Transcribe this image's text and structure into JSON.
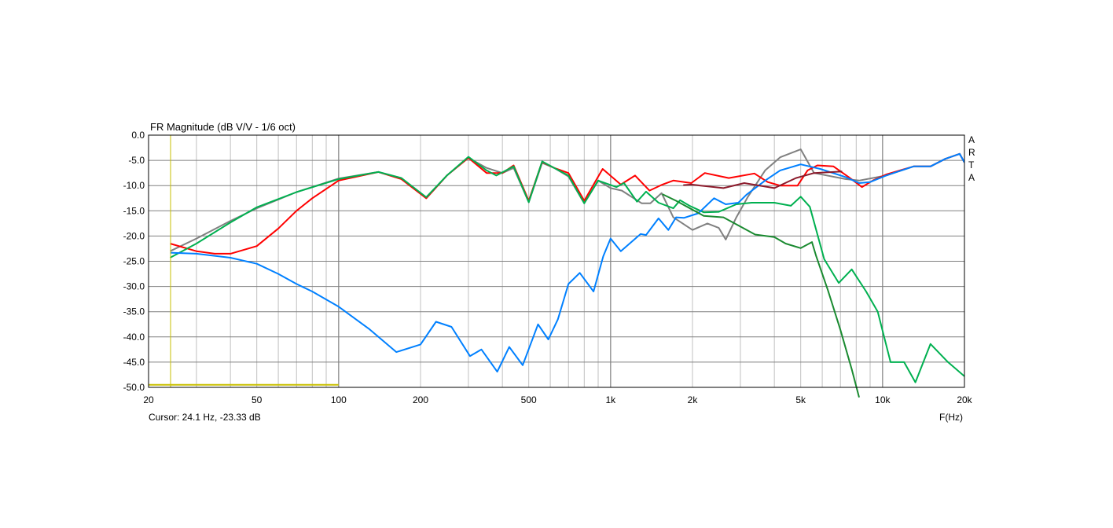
{
  "chart_data": {
    "type": "line",
    "title": "FR Magnitude (dB V/V - 1/6 oct)",
    "xlabel": "F(Hz)",
    "ylabel": "",
    "x_scale": "log",
    "xlim": [
      20,
      20000
    ],
    "ylim": [
      -50,
      0
    ],
    "grid": true,
    "x_ticks": [
      {
        "v": 20,
        "label": "20"
      },
      {
        "v": 50,
        "label": "50"
      },
      {
        "v": 100,
        "label": "100"
      },
      {
        "v": 200,
        "label": "200"
      },
      {
        "v": 500,
        "label": "500"
      },
      {
        "v": 1000,
        "label": "1k"
      },
      {
        "v": 2000,
        "label": "2k"
      },
      {
        "v": 5000,
        "label": "5k"
      },
      {
        "v": 10000,
        "label": "10k"
      },
      {
        "v": 20000,
        "label": "20k"
      }
    ],
    "y_ticks": [
      {
        "v": 0,
        "label": "0.0"
      },
      {
        "v": -5,
        "label": "-5.0"
      },
      {
        "v": -10,
        "label": "-10.0"
      },
      {
        "v": -15,
        "label": "-15.0"
      },
      {
        "v": -20,
        "label": "-20.0"
      },
      {
        "v": -25,
        "label": "-25.0"
      },
      {
        "v": -30,
        "label": "-30.0"
      },
      {
        "v": -35,
        "label": "-35.0"
      },
      {
        "v": -40,
        "label": "-40.0"
      },
      {
        "v": -45,
        "label": "-45.0"
      },
      {
        "v": -50,
        "label": "-50.0"
      }
    ],
    "cursor": {
      "text": "Cursor: 24.1 Hz, -23.33 dB",
      "freq": 24.1,
      "db": -23.33,
      "color": "#c8c000"
    },
    "watermark": "ARTA",
    "series": [
      {
        "color": "#808080",
        "points": [
          [
            24,
            -23
          ],
          [
            30,
            -20.5
          ],
          [
            40,
            -17
          ],
          [
            50,
            -14.5
          ],
          [
            70,
            -11.3
          ],
          [
            100,
            -8.6
          ],
          [
            140,
            -7.3
          ],
          [
            170,
            -8.5
          ],
          [
            210,
            -12.5
          ],
          [
            250,
            -8
          ],
          [
            300,
            -4.5
          ],
          [
            350,
            -6.5
          ],
          [
            400,
            -7.5
          ],
          [
            440,
            -6.5
          ],
          [
            500,
            -13.3
          ],
          [
            560,
            -5.5
          ],
          [
            620,
            -6.5
          ],
          [
            700,
            -8.2
          ],
          [
            800,
            -13.5
          ],
          [
            900,
            -9
          ],
          [
            1000,
            -10.5
          ],
          [
            1100,
            -11
          ],
          [
            1300,
            -13.5
          ],
          [
            1400,
            -13.5
          ],
          [
            1540,
            -11.5
          ],
          [
            1700,
            -16.3
          ],
          [
            2000,
            -18.8
          ],
          [
            2270,
            -17.5
          ],
          [
            2500,
            -18.4
          ],
          [
            2650,
            -20.7
          ],
          [
            2900,
            -16.3
          ],
          [
            3200,
            -12.2
          ],
          [
            3700,
            -7
          ],
          [
            4200,
            -4.4
          ],
          [
            5000,
            -2.8
          ],
          [
            5600,
            -7.5
          ],
          [
            7300,
            -8.7
          ],
          [
            8200,
            -9
          ],
          [
            10300,
            -8
          ],
          [
            13000,
            -6.2
          ],
          [
            15000,
            -6.2
          ],
          [
            17000,
            -4.7
          ],
          [
            19200,
            -3.7
          ],
          [
            20000,
            -5.4
          ]
        ]
      },
      {
        "color": "#ff0000",
        "points": [
          [
            24,
            -21.5
          ],
          [
            30,
            -23
          ],
          [
            35,
            -23.5
          ],
          [
            40,
            -23.5
          ],
          [
            50,
            -22
          ],
          [
            60,
            -18.5
          ],
          [
            70,
            -15
          ],
          [
            80,
            -12.5
          ],
          [
            100,
            -9
          ],
          [
            140,
            -7.3
          ],
          [
            170,
            -8.7
          ],
          [
            210,
            -12.5
          ],
          [
            250,
            -8
          ],
          [
            300,
            -4.5
          ],
          [
            350,
            -7.5
          ],
          [
            400,
            -7.5
          ],
          [
            440,
            -6
          ],
          [
            500,
            -13
          ],
          [
            560,
            -5.3
          ],
          [
            620,
            -6.5
          ],
          [
            700,
            -7.5
          ],
          [
            800,
            -13
          ],
          [
            935,
            -6.7
          ],
          [
            1090,
            -9.8
          ],
          [
            1230,
            -8
          ],
          [
            1390,
            -11
          ],
          [
            1550,
            -9.8
          ],
          [
            1700,
            -9
          ],
          [
            1980,
            -9.5
          ],
          [
            2220,
            -7.5
          ],
          [
            2720,
            -8.5
          ],
          [
            3380,
            -7.6
          ],
          [
            3780,
            -9.3
          ],
          [
            4200,
            -10
          ],
          [
            4870,
            -10
          ],
          [
            5300,
            -7
          ],
          [
            5760,
            -6
          ],
          [
            6600,
            -6.2
          ],
          [
            7500,
            -8.3
          ],
          [
            8400,
            -10.3
          ],
          [
            9200,
            -9
          ],
          [
            10300,
            -7.8
          ],
          [
            13000,
            -6.2
          ],
          [
            15000,
            -6.2
          ],
          [
            17000,
            -4.7
          ],
          [
            19200,
            -3.7
          ],
          [
            20000,
            -5.4
          ]
        ]
      },
      {
        "color": "#00b050",
        "points": [
          [
            24,
            -24.3
          ],
          [
            30,
            -21.5
          ],
          [
            40,
            -17.3
          ],
          [
            50,
            -14.3
          ],
          [
            70,
            -11.3
          ],
          [
            100,
            -8.7
          ],
          [
            140,
            -7.3
          ],
          [
            170,
            -8.5
          ],
          [
            210,
            -12.3
          ],
          [
            250,
            -8
          ],
          [
            300,
            -4.3
          ],
          [
            350,
            -7
          ],
          [
            380,
            -8
          ],
          [
            440,
            -6.2
          ],
          [
            500,
            -13.3
          ],
          [
            560,
            -5.2
          ],
          [
            620,
            -6.5
          ],
          [
            700,
            -8
          ],
          [
            800,
            -13.5
          ],
          [
            900,
            -9
          ],
          [
            1050,
            -10.3
          ],
          [
            1120,
            -9.5
          ],
          [
            1250,
            -13.2
          ],
          [
            1350,
            -11.2
          ],
          [
            1500,
            -13.4
          ],
          [
            1700,
            -14.5
          ],
          [
            1800,
            -12.9
          ],
          [
            1950,
            -14
          ],
          [
            2200,
            -15.3
          ],
          [
            2500,
            -15.2
          ],
          [
            2900,
            -13.7
          ],
          [
            3300,
            -13.4
          ],
          [
            4000,
            -13.4
          ],
          [
            4600,
            -14
          ],
          [
            5000,
            -12.2
          ],
          [
            5400,
            -14.2
          ],
          [
            6100,
            -24.6
          ],
          [
            6900,
            -29.3
          ],
          [
            7700,
            -26.6
          ],
          [
            8700,
            -31
          ],
          [
            9600,
            -35
          ],
          [
            10700,
            -45
          ],
          [
            12000,
            -45
          ],
          [
            13200,
            -49
          ],
          [
            15000,
            -41.4
          ],
          [
            17400,
            -45
          ],
          [
            20000,
            -47.8
          ]
        ]
      },
      {
        "color": "#0080ff",
        "points": [
          [
            24,
            -23.3
          ],
          [
            30,
            -23.5
          ],
          [
            40,
            -24.3
          ],
          [
            50,
            -25.5
          ],
          [
            60,
            -27.5
          ],
          [
            70,
            -29.5
          ],
          [
            80,
            -31
          ],
          [
            100,
            -34
          ],
          [
            130,
            -38.5
          ],
          [
            163,
            -43
          ],
          [
            200,
            -41.5
          ],
          [
            228,
            -37
          ],
          [
            260,
            -38
          ],
          [
            304,
            -43.8
          ],
          [
            335,
            -42.5
          ],
          [
            383,
            -46.9
          ],
          [
            424,
            -42
          ],
          [
            475,
            -45.6
          ],
          [
            541,
            -37.5
          ],
          [
            590,
            -40.5
          ],
          [
            640,
            -36.5
          ],
          [
            700,
            -29.5
          ],
          [
            770,
            -27.3
          ],
          [
            865,
            -31
          ],
          [
            940,
            -24
          ],
          [
            1000,
            -20.5
          ],
          [
            1090,
            -23
          ],
          [
            1290,
            -19.6
          ],
          [
            1350,
            -19.8
          ],
          [
            1500,
            -16.5
          ],
          [
            1630,
            -18.8
          ],
          [
            1740,
            -16.3
          ],
          [
            1860,
            -16.4
          ],
          [
            2100,
            -15.5
          ],
          [
            2400,
            -12.5
          ],
          [
            2650,
            -13.7
          ],
          [
            2950,
            -13.4
          ],
          [
            3160,
            -11.8
          ],
          [
            3700,
            -9
          ],
          [
            4200,
            -7
          ],
          [
            5000,
            -5.8
          ],
          [
            5900,
            -6.7
          ],
          [
            7300,
            -8.3
          ],
          [
            8200,
            -9.5
          ],
          [
            9000,
            -9.3
          ],
          [
            10300,
            -8
          ],
          [
            13000,
            -6.2
          ],
          [
            15000,
            -6.2
          ],
          [
            17000,
            -4.7
          ],
          [
            19200,
            -3.7
          ],
          [
            20000,
            -5.4
          ]
        ]
      },
      {
        "color": "#8b1a2b",
        "points": [
          [
            1850,
            -9.9
          ],
          [
            1980,
            -9.8
          ],
          [
            2600,
            -10.5
          ],
          [
            3100,
            -9.5
          ],
          [
            4000,
            -10.5
          ],
          [
            4800,
            -8.5
          ],
          [
            5600,
            -7.5
          ],
          [
            7100,
            -7.2
          ]
        ]
      },
      {
        "color": "#1a8a30",
        "points": [
          [
            1550,
            -11.7
          ],
          [
            1740,
            -13
          ],
          [
            2200,
            -16
          ],
          [
            2600,
            -16.3
          ],
          [
            3400,
            -19.7
          ],
          [
            4000,
            -20.2
          ],
          [
            4400,
            -21.5
          ],
          [
            5000,
            -22.4
          ],
          [
            5500,
            -21.2
          ],
          [
            5700,
            -24
          ],
          [
            6300,
            -30.8
          ],
          [
            7000,
            -38.6
          ],
          [
            7700,
            -46.4
          ],
          [
            8200,
            -52
          ]
        ]
      },
      {
        "color": "#c8c000",
        "points": [
          [
            20,
            -49.5
          ],
          [
            100,
            -49.5
          ]
        ]
      }
    ]
  }
}
